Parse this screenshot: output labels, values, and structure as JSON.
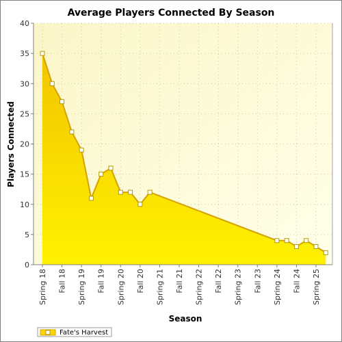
{
  "chart_data": {
    "type": "area",
    "title": "Average Players Connected By Season",
    "xlabel": "Season",
    "ylabel": "Players Connected",
    "ylim": [
      0,
      40
    ],
    "yticks": [
      0,
      5,
      10,
      15,
      20,
      25,
      30,
      35,
      40
    ],
    "categories": [
      "Spring 18",
      "Fall 18",
      "Spring 19",
      "Fall 19",
      "Spring 20",
      "Fall 20",
      "Spring 21",
      "Fall 21",
      "Spring 22",
      "Fall 22",
      "Spring 23",
      "Fall 23",
      "Spring 24",
      "Fall 24",
      "Spring 25"
    ],
    "grid": true,
    "legend_position": "bottom-left",
    "series": [
      {
        "name": "Fate's Harvest",
        "color": "#ffd700",
        "points": [
          {
            "x": 0.0,
            "y": 35
          },
          {
            "x": 0.5,
            "y": 30
          },
          {
            "x": 1.0,
            "y": 27
          },
          {
            "x": 1.5,
            "y": 22
          },
          {
            "x": 2.0,
            "y": 19
          },
          {
            "x": 2.5,
            "y": 11
          },
          {
            "x": 3.0,
            "y": 15
          },
          {
            "x": 3.5,
            "y": 16
          },
          {
            "x": 4.0,
            "y": 12
          },
          {
            "x": 4.5,
            "y": 12
          },
          {
            "x": 5.0,
            "y": 10
          },
          {
            "x": 5.5,
            "y": 12
          },
          {
            "x": 12.0,
            "y": 4
          },
          {
            "x": 12.5,
            "y": 4
          },
          {
            "x": 13.0,
            "y": 3
          },
          {
            "x": 13.5,
            "y": 4
          },
          {
            "x": 14.0,
            "y": 3
          },
          {
            "x": 14.5,
            "y": 2
          }
        ]
      }
    ]
  }
}
